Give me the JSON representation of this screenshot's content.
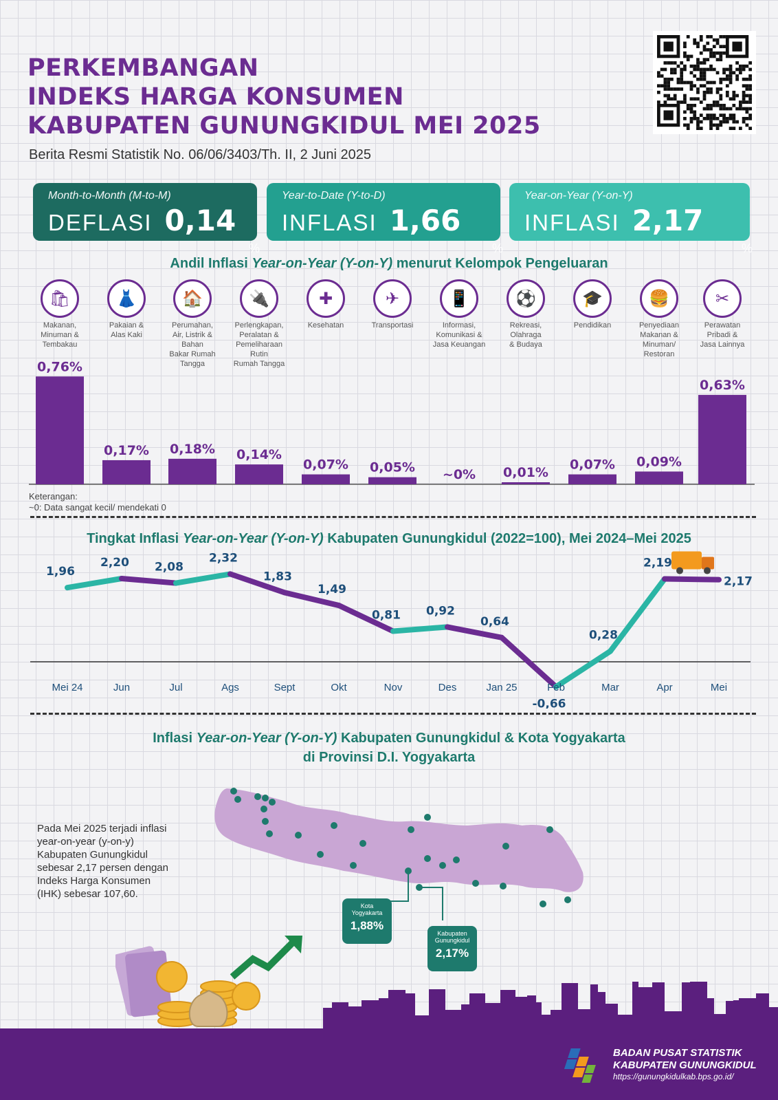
{
  "header": {
    "title_lines": [
      "PERKEMBANGAN",
      "INDEKS HARGA KONSUMEN",
      "KABUPATEN GUNUNGKIDUL MEI 2025"
    ],
    "subtitle": "Berita Resmi Statistik No. 06/06/3403/Th. II, 2 Juni 2025"
  },
  "cards": [
    {
      "label": "Month-to-Month (M-to-M)",
      "kind": "DEFLASI",
      "value": "0,14",
      "unit": "%",
      "color": "#1d6b60"
    },
    {
      "label": "Year-to-Date (Y-to-D)",
      "kind": "INFLASI",
      "value": "1,66",
      "unit": "%",
      "color": "#23a090"
    },
    {
      "label": "Year-on-Year (Y-on-Y)",
      "kind": "INFLASI",
      "value": "2,17",
      "unit": "%",
      "color": "#3dbfae"
    }
  ],
  "section1": {
    "title_a": "Andil Inflasi ",
    "title_b": "Year-on-Year (Y-on-Y)",
    "title_c": " menurut Kelompok Pengeluaran",
    "note_title": "Keterangan:",
    "note_text": "~0: Data sangat kecil/ mendekati 0"
  },
  "section2": {
    "title_a": "Tingkat Inflasi ",
    "title_b": "Year-on-Year (Y-on-Y)",
    "title_c": " Kabupaten Gunungkidul (2022=100), Mei 2024–Mei 2025"
  },
  "section3": {
    "title_a": "Inflasi ",
    "title_b": "Year-on-Year (Y-on-Y)",
    "title_c": " Kabupaten Gunungkidul & Kota Yogyakarta",
    "title_line2": "di Provinsi D.I. Yogyakarta",
    "body": "Pada Mei 2025 terjadi inflasi year-on-year (y-on-y) Kabupaten Gunungkidul sebesar 2,17 persen dengan Indeks Harga Konsumen (IHK) sebesar 107,60.",
    "callouts": [
      {
        "label": "Kota\nYogyakarta",
        "value": "1,88%"
      },
      {
        "label": "Kabupaten\nGunungkidul",
        "value": "2,17%"
      }
    ]
  },
  "footer": {
    "org_line1": "BADAN PUSAT STATISTIK",
    "org_line2": "KABUPATEN GUNUNGKIDUL",
    "url": "https://gunungkidulkab.bps.go.id/"
  },
  "colors": {
    "purple": "#6b2c91",
    "teal": "#2bb5a5",
    "dark_teal": "#1e7a6d"
  },
  "chart_data": [
    {
      "type": "bar",
      "categories": [
        "Makanan,\nMinuman &\nTembakau",
        "Pakaian &\nAlas Kaki",
        "Perumahan,\nAir, Listrik &\nBahan\nBakar Rumah\nTangga",
        "Perlengkapan,\nPeralatan &\nPemeliharaan\nRutin\nRumah Tangga",
        "Kesehatan",
        "Transportasi",
        "Informasi,\nKomunikasi &\nJasa Keuangan",
        "Rekreasi,\nOlahraga\n& Budaya",
        "Pendidikan",
        "Penyediaan\nMakanan &\nMinuman/\nRestoran",
        "Perawatan\nPribadi &\nJasa Lainnya"
      ],
      "icons": [
        "grocery-bag-icon",
        "dress-icon",
        "house-icon",
        "plug-icon",
        "medical-kit-icon",
        "airplane-icon",
        "smartphone-icon",
        "soccer-player-icon",
        "graduation-cap-icon",
        "fast-food-icon",
        "scissors-comb-icon"
      ],
      "values": [
        0.76,
        0.17,
        0.18,
        0.14,
        0.07,
        0.05,
        0,
        0.01,
        0.07,
        0.09,
        0.63
      ],
      "data_labels": [
        "0,76%",
        "0,17%",
        "0,18%",
        "0,14%",
        "0,07%",
        "0,05%",
        "~0%",
        "0,01%",
        "0,07%",
        "0,09%",
        "0,63%"
      ],
      "color": "#6b2c91"
    },
    {
      "type": "line",
      "x": [
        "Mei 24",
        "Jun",
        "Jul",
        "Ags",
        "Sept",
        "Okt",
        "Nov",
        "Des",
        "Jan 25",
        "Feb",
        "Mar",
        "Apr",
        "Mei"
      ],
      "values": [
        1.96,
        2.2,
        2.08,
        2.32,
        1.83,
        1.49,
        0.81,
        0.92,
        0.64,
        -0.66,
        0.28,
        2.19,
        2.17
      ],
      "data_labels": [
        "1,96",
        "2,20",
        "2,08",
        "2,32",
        "1,83",
        "1,49",
        "0,81",
        "0,92",
        "0,64",
        "-0,66",
        "0,28",
        "2,19",
        "2,17"
      ],
      "colors": [
        "#2bb5a5",
        "#6b2c91"
      ],
      "ylim": [
        -0.8,
        2.6
      ]
    }
  ]
}
